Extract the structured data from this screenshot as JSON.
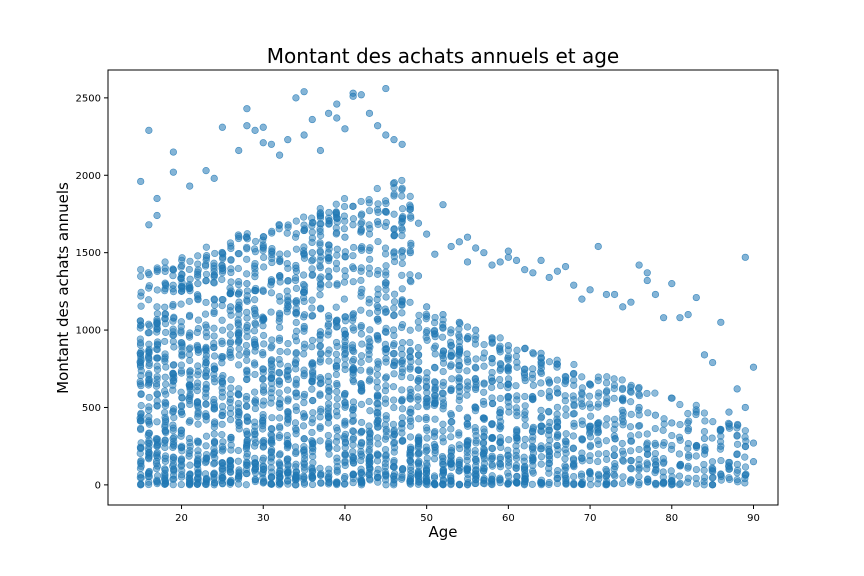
{
  "chart_data": {
    "type": "scatter",
    "title": "Montant des achats annuels et age",
    "xlabel": "Age",
    "ylabel": "Montant des achats annuels",
    "xlim": [
      11,
      93
    ],
    "ylim": [
      -130,
      2680
    ],
    "xticks": [
      20,
      30,
      40,
      50,
      60,
      70,
      80,
      90
    ],
    "yticks": [
      0,
      500,
      1000,
      1500,
      2000,
      2500
    ],
    "grid": false,
    "marker_color": "#1f77b4",
    "marker_alpha": 0.5,
    "series": [
      {
        "x": [
          16,
          17,
          19,
          19,
          21,
          23,
          24,
          25,
          27,
          28,
          28,
          29,
          30,
          30,
          31,
          32,
          33,
          34,
          35,
          35,
          36,
          37,
          38,
          39,
          39,
          40,
          41,
          41,
          42,
          43,
          44,
          45,
          45,
          46,
          47,
          48,
          49,
          50,
          51,
          52,
          53,
          54,
          55,
          55,
          56,
          57,
          58,
          59,
          60,
          60,
          61,
          62,
          63,
          64,
          65,
          66,
          67,
          68,
          69,
          70,
          71,
          72,
          73,
          74,
          75,
          76,
          77,
          77,
          78,
          79,
          80,
          81,
          82,
          83,
          84,
          85,
          86,
          87,
          88,
          89,
          89,
          90,
          90,
          15,
          15,
          16,
          17,
          18,
          20,
          22,
          24,
          26,
          28,
          30,
          32,
          34,
          36,
          38,
          40,
          42,
          44,
          46,
          48,
          49,
          50,
          52,
          54,
          56,
          58,
          60,
          62,
          64,
          66,
          68,
          70,
          72,
          74,
          76,
          78,
          80,
          82,
          84,
          86,
          88,
          90
        ],
        "y": [
          2290,
          1850,
          2150,
          2020,
          1930,
          2030,
          1980,
          2310,
          2160,
          2430,
          2320,
          2290,
          2310,
          2210,
          2200,
          2130,
          2230,
          2500,
          2540,
          2260,
          2360,
          2160,
          2400,
          2460,
          2370,
          2300,
          2530,
          2510,
          2520,
          2400,
          2320,
          2560,
          2260,
          2230,
          2200,
          1780,
          1690,
          1620,
          1490,
          1810,
          1540,
          1570,
          1600,
          1440,
          1530,
          1500,
          1420,
          1440,
          1510,
          1470,
          1450,
          1390,
          1370,
          1450,
          1340,
          1380,
          1410,
          1290,
          1200,
          1260,
          1540,
          1230,
          1230,
          1150,
          1180,
          1420,
          1370,
          1320,
          1230,
          1080,
          1300,
          1080,
          1100,
          1210,
          840,
          790,
          1050,
          470,
          620,
          1470,
          500,
          760,
          270,
          1960,
          0,
          1680,
          1740,
          1400,
          1250,
          1300,
          1200,
          1150,
          1300,
          1250,
          1350,
          1400,
          1500,
          1550,
          1600,
          1650,
          1700,
          1650,
          1500,
          1350,
          1150,
          1100,
          1050,
          1000,
          950,
          900,
          880,
          850,
          780,
          720,
          650,
          600,
          560,
          500,
          450,
          400,
          350,
          300,
          250,
          200,
          150
        ]
      }
    ]
  }
}
